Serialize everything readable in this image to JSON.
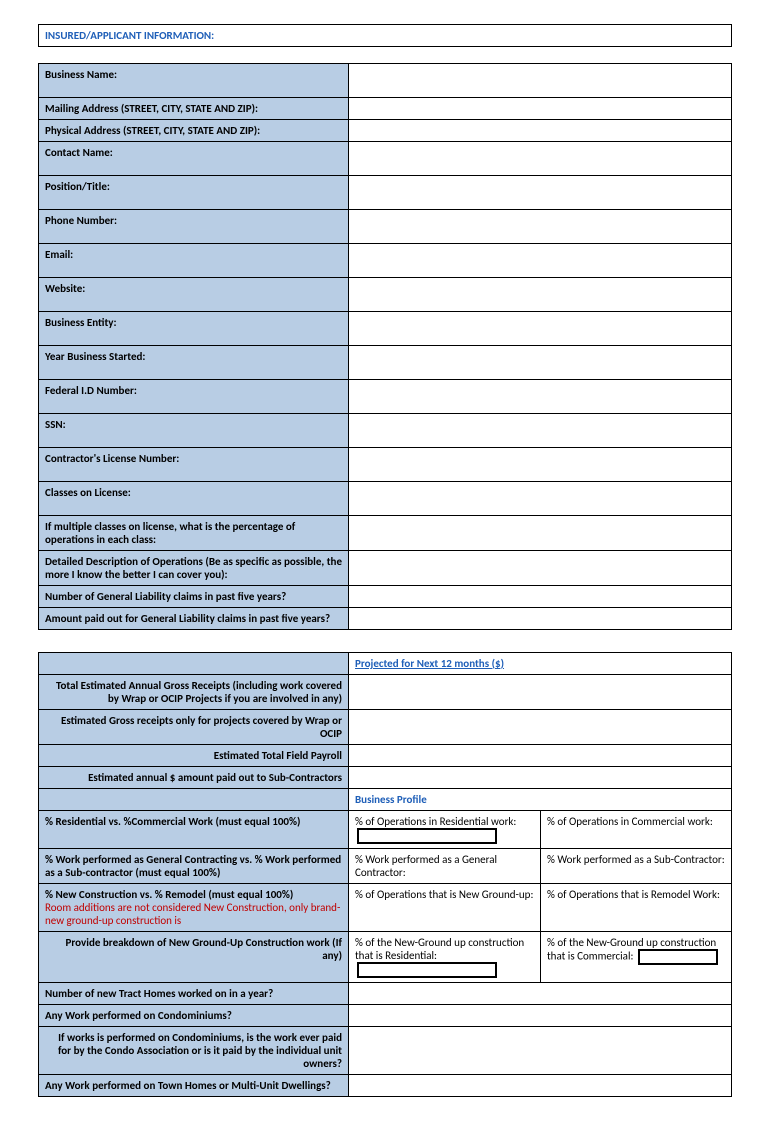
{
  "colors": {
    "label_bg": "#b8cde4",
    "link_blue": "#1f5fb8",
    "red_note": "#c00000",
    "border": "#000000",
    "page_bg": "#ffffff"
  },
  "section_title": "INSURED/APPLICANT INFORMATION:",
  "table1_rows": [
    {
      "label": "Business Name:"
    },
    {
      "label": "Mailing Address (STREET, CITY, STATE AND ZIP):"
    },
    {
      "label": "Physical Address (STREET, CITY, STATE AND ZIP):"
    },
    {
      "label": "Contact Name:"
    },
    {
      "label": "Position/Title:"
    },
    {
      "label": "Phone Number:"
    },
    {
      "label": "Email:"
    },
    {
      "label": "Website:"
    },
    {
      "label": "Business Entity:"
    },
    {
      "label": "Year Business Started:"
    },
    {
      "label": "Federal I.D Number:"
    },
    {
      "label": "SSN:"
    },
    {
      "label": "Contractor's License Number:"
    },
    {
      "label": "Classes on License:"
    },
    {
      "label": "If multiple classes on license, what is the percentage of operations in each class:"
    },
    {
      "label": "Detailed Description of Operations (Be as specific as possible, the more I know the better I can cover you):"
    },
    {
      "label": "Number of General Liability claims in past five years?"
    },
    {
      "label": "Amount paid out for General Liability claims in past five years?"
    }
  ],
  "projected_header": "Projected for Next 12 months ($)",
  "table2_top": [
    {
      "label": "Total Estimated Annual Gross Receipts (including work covered by Wrap or OCIP Projects if you are involved in any)"
    },
    {
      "label": "Estimated Gross receipts only for projects covered by Wrap or OCIP"
    },
    {
      "label": "Estimated Total Field Payroll"
    },
    {
      "label": "Estimated annual $ amount paid out to Sub-Contractors"
    }
  ],
  "business_profile_header": "Business Profile",
  "bp": {
    "row1": {
      "label": "% Residential vs. %Commercial Work (must equal 100%)",
      "c1": "% of Operations in Residential work:",
      "c2": "% of Operations in Commercial work:"
    },
    "row2": {
      "label": "% Work performed as General Contracting vs. % Work performed as a Sub-contractor (must equal 100%)",
      "c1": "% Work performed as a General Contractor:",
      "c2": "% Work performed as a Sub-Contractor:"
    },
    "row3": {
      "label_main": "% New Construction vs. % Remodel (must equal 100%)",
      "label_note": "Room additions are not considered New Construction, only brand-new ground-up construction is",
      "c1": "% of Operations that is New Ground-up:",
      "c2": "% of Operations that is Remodel Work:"
    },
    "row4": {
      "label": "Provide breakdown of New Ground-Up Construction work (If any)",
      "c1": "% of the New-Ground up construction that is Residential:",
      "c2": "% of the New-Ground up construction that is Commercial:"
    },
    "row5": {
      "label": "Number of new Tract Homes worked on in a year?"
    },
    "row6": {
      "label": "Any Work performed on Condominiums?"
    },
    "row7": {
      "label": "If works is performed on Condominiums, is the work ever paid for by the Condo Association or is it paid by the individual unit owners?"
    },
    "row8": {
      "label": "Any Work performed on Town Homes or Multi-Unit Dwellings?"
    }
  }
}
